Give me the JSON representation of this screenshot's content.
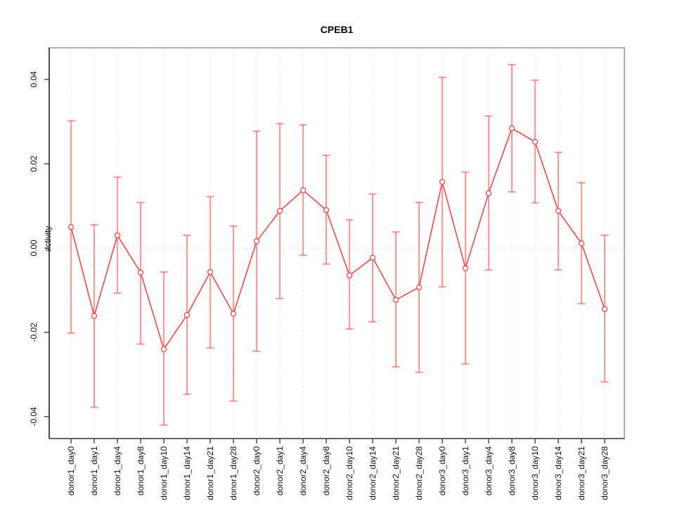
{
  "chart_data": {
    "type": "line",
    "title": "CPEB1",
    "xlabel": "",
    "ylabel": "activity",
    "categories": [
      "donor1_day0",
      "donor1_day1",
      "donor1_day4",
      "donor1_day8",
      "donor1_day10",
      "donor1_day14",
      "donor1_day21",
      "donor1_day28",
      "donor2_day0",
      "donor2_day1",
      "donor2_day4",
      "donor2_day8",
      "donor2_day10",
      "donor2_day14",
      "donor2_day21",
      "donor2_day28",
      "donor3_day0",
      "donor3_day1",
      "donor3_day4",
      "donor3_day8",
      "donor3_day10",
      "donor3_day14",
      "donor3_day21",
      "donor3_day28"
    ],
    "series": [
      {
        "name": "activity",
        "values": [
          0.005,
          -0.0161,
          0.003,
          -0.0058,
          -0.024,
          -0.0159,
          -0.0057,
          -0.0156,
          0.0016,
          0.0088,
          0.0137,
          0.009,
          -0.0065,
          -0.0023,
          -0.0123,
          -0.0093,
          0.0157,
          -0.0048,
          0.013,
          0.0284,
          0.0252,
          0.0088,
          0.0011,
          -0.0145
        ],
        "error_low": [
          -0.0202,
          -0.0378,
          -0.0107,
          -0.0228,
          -0.042,
          -0.0347,
          -0.0237,
          -0.0363,
          -0.0245,
          -0.012,
          -0.0017,
          -0.0038,
          -0.0192,
          -0.0175,
          -0.0282,
          -0.0295,
          -0.0092,
          -0.0275,
          -0.0052,
          0.0133,
          0.0107,
          -0.0052,
          -0.0132,
          -0.0318
        ],
        "error_high": [
          0.0302,
          0.0055,
          0.0168,
          0.0108,
          -0.0057,
          0.003,
          0.0122,
          0.0052,
          0.0277,
          0.0295,
          0.0292,
          0.022,
          0.0067,
          0.0128,
          0.0038,
          0.0108,
          0.0405,
          0.018,
          0.0313,
          0.0435,
          0.0398,
          0.0227,
          0.0155,
          0.003
        ]
      }
    ],
    "ylim": [
      -0.0452,
      0.0475
    ],
    "yticks": [
      -0.04,
      -0.02,
      0,
      0.02,
      0.04
    ],
    "ytick_labels": [
      "-0.04",
      "-0.02",
      "0.00",
      "0.02",
      "0.04"
    ],
    "grid": {
      "vertical": "dashed-at-each-category",
      "zero_line": "dotted"
    },
    "legend": "none",
    "marker": "open-circle",
    "colors": {
      "line": "#f04848",
      "point": "#f04848",
      "error_bar": "rgba(240,80,80,0.55)",
      "grid": "#e4e4e4",
      "zero_line": "#d4d4d4",
      "axis": "#4a4a4a",
      "box": "#b0b0b0",
      "text": "#111111",
      "background": "#ffffff"
    }
  }
}
